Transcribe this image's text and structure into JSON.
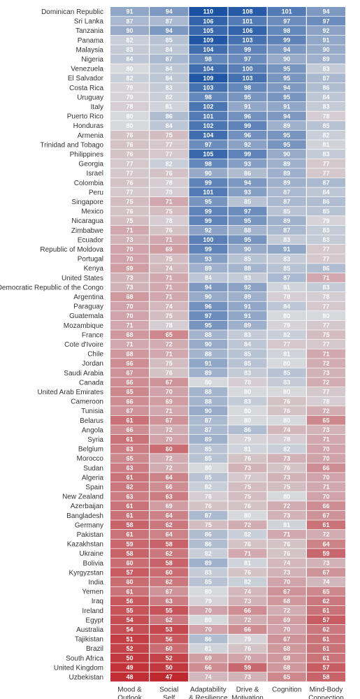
{
  "chart_data": {
    "type": "heatmap",
    "title": "",
    "columns": [
      "Mood & Outlook",
      "Social Self",
      "Adaptability & Resilience",
      "Drive & Motivation",
      "Cognition",
      "Mind-Body Connection"
    ],
    "column_labels": [
      [
        "Mood &",
        "Outlook"
      ],
      [
        "Social",
        "Self"
      ],
      [
        "Adaptability",
        "& Resilience"
      ],
      [
        "Drive &",
        "Motivation"
      ],
      [
        "Cognition"
      ],
      [
        "Mind-Body",
        "Connection"
      ]
    ],
    "rows": [
      {
        "country": "Dominican Republic",
        "values": [
          91,
          94,
          110,
          108,
          101,
          94
        ]
      },
      {
        "country": "Sri Lanka",
        "values": [
          87,
          87,
          106,
          101,
          97,
          97
        ]
      },
      {
        "country": "Tanzania",
        "values": [
          90,
          94,
          105,
          106,
          98,
          92
        ]
      },
      {
        "country": "Panama",
        "values": [
          82,
          85,
          109,
          103,
          99,
          91
        ]
      },
      {
        "country": "Malaysia",
        "values": [
          83,
          84,
          104,
          99,
          94,
          90
        ]
      },
      {
        "country": "Nigeria",
        "values": [
          84,
          87,
          98,
          97,
          90,
          89
        ]
      },
      {
        "country": "Venezuela",
        "values": [
          80,
          84,
          104,
          100,
          95,
          83
        ]
      },
      {
        "country": "El Salvador",
        "values": [
          82,
          84,
          109,
          103,
          95,
          87
        ]
      },
      {
        "country": "Costa Rica",
        "values": [
          79,
          83,
          103,
          98,
          94,
          86
        ]
      },
      {
        "country": "Uruguay",
        "values": [
          79,
          82,
          98,
          95,
          95,
          84
        ]
      },
      {
        "country": "Italy",
        "values": [
          78,
          81,
          102,
          91,
          91,
          83
        ]
      },
      {
        "country": "Puerto Rico",
        "values": [
          80,
          86,
          101,
          96,
          94,
          78
        ]
      },
      {
        "country": "Honduras",
        "values": [
          80,
          84,
          102,
          99,
          89,
          85
        ]
      },
      {
        "country": "Armenia",
        "values": [
          76,
          75,
          104,
          96,
          95,
          82
        ]
      },
      {
        "country": "Trinidad and Tobago",
        "values": [
          76,
          77,
          97,
          92,
          95,
          81
        ]
      },
      {
        "country": "Philippines",
        "values": [
          76,
          77,
          105,
          99,
          90,
          83
        ]
      },
      {
        "country": "Georgia",
        "values": [
          77,
          82,
          98,
          93,
          89,
          77
        ]
      },
      {
        "country": "Israel",
        "values": [
          77,
          76,
          90,
          86,
          89,
          77
        ]
      },
      {
        "country": "Colombia",
        "values": [
          76,
          78,
          99,
          94,
          89,
          87
        ]
      },
      {
        "country": "Peru",
        "values": [
          77,
          78,
          101,
          93,
          87,
          84
        ]
      },
      {
        "country": "Singapore",
        "values": [
          75,
          71,
          95,
          85,
          87,
          86
        ]
      },
      {
        "country": "Mexico",
        "values": [
          76,
          75,
          99,
          97,
          85,
          85
        ]
      },
      {
        "country": "Nicaragua",
        "values": [
          75,
          78,
          99,
          95,
          89,
          79
        ]
      },
      {
        "country": "Zimbabwe",
        "values": [
          71,
          76,
          92,
          88,
          87,
          83
        ]
      },
      {
        "country": "Ecuador",
        "values": [
          73,
          71,
          100,
          95,
          83,
          83
        ]
      },
      {
        "country": "Republic of Moldova",
        "values": [
          70,
          69,
          99,
          90,
          91,
          77
        ]
      },
      {
        "country": "Portugal",
        "values": [
          70,
          75,
          93,
          85,
          83,
          77
        ]
      },
      {
        "country": "Kenya",
        "values": [
          69,
          74,
          89,
          88,
          85,
          86
        ]
      },
      {
        "country": "United States",
        "values": [
          73,
          71,
          84,
          83,
          87,
          71
        ]
      },
      {
        "country": "Democratic Republic of the Congo",
        "values": [
          73,
          71,
          94,
          92,
          81,
          83
        ]
      },
      {
        "country": "Argentina",
        "values": [
          68,
          71,
          90,
          89,
          78,
          78
        ]
      },
      {
        "country": "Paraguay",
        "values": [
          70,
          74,
          96,
          91,
          84,
          77
        ]
      },
      {
        "country": "Guatemala",
        "values": [
          70,
          75,
          97,
          91,
          80,
          80
        ]
      },
      {
        "country": "Mozambique",
        "values": [
          71,
          78,
          95,
          89,
          79,
          77
        ]
      },
      {
        "country": "France",
        "values": [
          68,
          65,
          88,
          83,
          82,
          75
        ]
      },
      {
        "country": "Cote d'Ivoire",
        "values": [
          71,
          72,
          90,
          84,
          77,
          77
        ]
      },
      {
        "country": "Chile",
        "values": [
          68,
          71,
          88,
          85,
          81,
          71
        ]
      },
      {
        "country": "Jordan",
        "values": [
          66,
          75,
          91,
          85,
          80,
          72
        ]
      },
      {
        "country": "Saudi Arabia",
        "values": [
          67,
          76,
          89,
          83,
          85,
          73
        ]
      },
      {
        "country": "Canada",
        "values": [
          66,
          67,
          80,
          78,
          83,
          72
        ]
      },
      {
        "country": "United Arab Emirates",
        "values": [
          65,
          70,
          88,
          80,
          80,
          77
        ]
      },
      {
        "country": "Cameroon",
        "values": [
          66,
          69,
          88,
          83,
          76,
          78
        ]
      },
      {
        "country": "Tunisia",
        "values": [
          67,
          71,
          90,
          80,
          76,
          72
        ]
      },
      {
        "country": "Belarus",
        "values": [
          61,
          67,
          87,
          80,
          80,
          65
        ]
      },
      {
        "country": "Angola",
        "values": [
          66,
          72,
          87,
          86,
          74,
          73
        ]
      },
      {
        "country": "Syria",
        "values": [
          61,
          70,
          89,
          79,
          78,
          71
        ]
      },
      {
        "country": "Belgium",
        "values": [
          63,
          60,
          85,
          81,
          82,
          70
        ]
      },
      {
        "country": "Morocco",
        "values": [
          65,
          72,
          85,
          76,
          73,
          70
        ]
      },
      {
        "country": "Sudan",
        "values": [
          63,
          72,
          80,
          73,
          76,
          66
        ]
      },
      {
        "country": "Algeria",
        "values": [
          61,
          64,
          85,
          77,
          73,
          70
        ]
      },
      {
        "country": "Spain",
        "values": [
          62,
          66,
          82,
          75,
          75,
          71
        ]
      },
      {
        "country": "New Zealand",
        "values": [
          63,
          63,
          78,
          75,
          80,
          70
        ]
      },
      {
        "country": "Azerbaijan",
        "values": [
          61,
          69,
          76,
          76,
          72,
          66
        ]
      },
      {
        "country": "Bangladesh",
        "values": [
          61,
          64,
          87,
          80,
          73,
          67
        ]
      },
      {
        "country": "Germany",
        "values": [
          58,
          62,
          75,
          72,
          81,
          61
        ]
      },
      {
        "country": "Pakistan",
        "values": [
          61,
          64,
          86,
          82,
          71,
          72
        ]
      },
      {
        "country": "Kazakhstan",
        "values": [
          59,
          58,
          86,
          76,
          76,
          64
        ]
      },
      {
        "country": "Ukraine",
        "values": [
          58,
          62,
          82,
          71,
          76,
          59
        ]
      },
      {
        "country": "Bolivia",
        "values": [
          60,
          58,
          89,
          81,
          74,
          73
        ]
      },
      {
        "country": "Kyrgyzstan",
        "values": [
          57,
          60,
          83,
          76,
          73,
          67
        ]
      },
      {
        "country": "India",
        "values": [
          60,
          62,
          85,
          82,
          70,
          74
        ]
      },
      {
        "country": "Yemen",
        "values": [
          61,
          67,
          80,
          74,
          67,
          65
        ]
      },
      {
        "country": "Iraq",
        "values": [
          56,
          63,
          79,
          73,
          68,
          62
        ]
      },
      {
        "country": "Ireland",
        "values": [
          55,
          55,
          70,
          66,
          72,
          61
        ]
      },
      {
        "country": "Egypt",
        "values": [
          54,
          62,
          80,
          72,
          69,
          57
        ]
      },
      {
        "country": "Australia",
        "values": [
          54,
          53,
          70,
          66,
          70,
          62
        ]
      },
      {
        "country": "Tajikistan",
        "values": [
          51,
          56,
          86,
          79,
          67,
          61
        ]
      },
      {
        "country": "Brazil",
        "values": [
          52,
          60,
          81,
          76,
          68,
          61
        ]
      },
      {
        "country": "South Africa",
        "values": [
          50,
          52,
          69,
          70,
          68,
          61
        ]
      },
      {
        "country": "United Kingdom",
        "values": [
          49,
          50,
          66,
          59,
          68,
          57
        ]
      },
      {
        "country": "Uzbekistan",
        "values": [
          48,
          47,
          74,
          73,
          65,
          58
        ]
      }
    ],
    "color_scale": {
      "low": "#c0282f",
      "mid": "#d6d8dc",
      "high": "#1a52a3"
    },
    "grid": false,
    "legend": "none"
  }
}
